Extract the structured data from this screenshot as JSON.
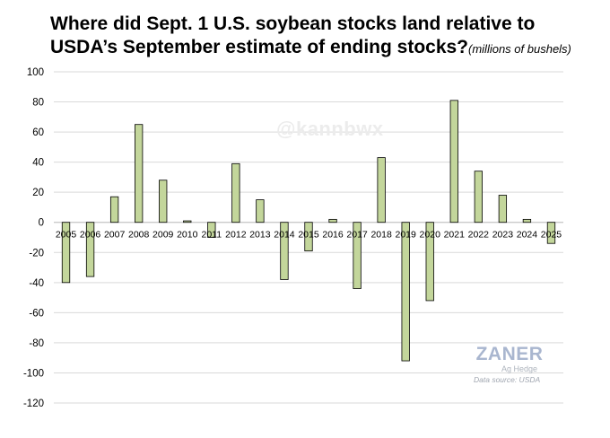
{
  "title_line1": "Where did Sept. 1 U.S. soybean stocks land relative to",
  "title_line2": "USDA’s September estimate of ending stocks?",
  "units": "(millions of bushels)",
  "watermark": "@kannbwx",
  "logo_name": "ZANER",
  "logo_sub": "Ag Hedge",
  "source": "Data source: USDA",
  "colors": {
    "bar_fill": "#c3d69b",
    "bar_stroke": "#000000",
    "grid": "#d9d9d9"
  },
  "chart_data": {
    "type": "bar",
    "categories": [
      "2005",
      "2006",
      "2007",
      "2008",
      "2009",
      "2010",
      "2011",
      "2012",
      "2013",
      "2014",
      "2015",
      "2016",
      "2017",
      "2018",
      "2019",
      "2020",
      "2021",
      "2022",
      "2023",
      "2024",
      "2025"
    ],
    "values": [
      -40,
      -36,
      17,
      65,
      28,
      1,
      -10,
      39,
      15,
      -38,
      -19,
      2,
      -44,
      43,
      -92,
      -52,
      81,
      34,
      18,
      2,
      -14
    ],
    "ylim": [
      -120,
      100
    ],
    "yticks": [
      100,
      80,
      60,
      40,
      20,
      0,
      -20,
      -40,
      -60,
      -80,
      -100,
      -120
    ],
    "grid": true,
    "legend": "none"
  }
}
